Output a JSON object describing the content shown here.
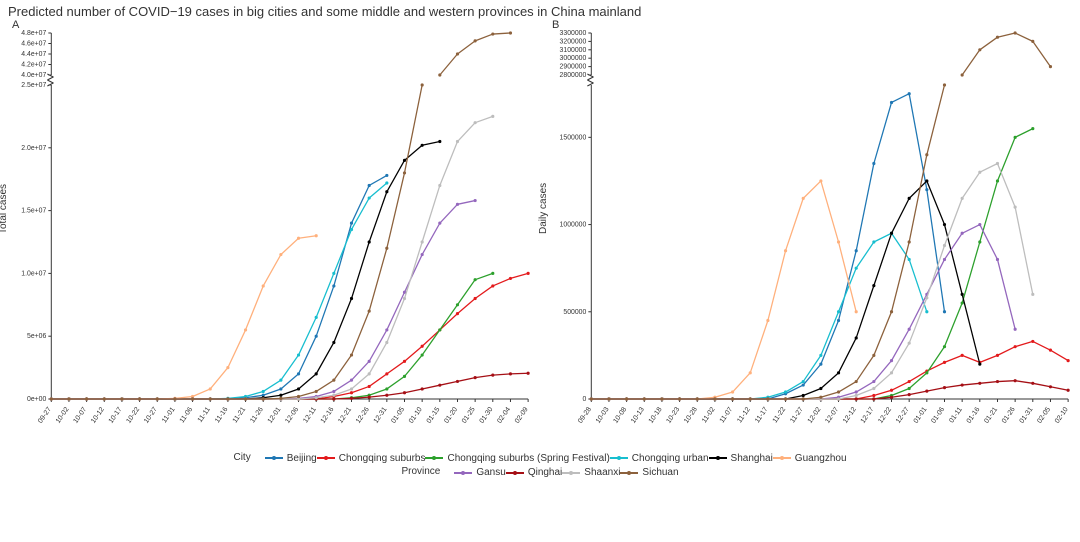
{
  "title": "Predicted number of COVID−19 cases in big cities and some middle and western provinces in China mainland",
  "panels": {
    "A": {
      "label": "A",
      "ylabel": "Total cases",
      "type": "line",
      "x_dates": [
        "09-27",
        "10-02",
        "10-07",
        "10-12",
        "10-17",
        "10-22",
        "10-27",
        "11-01",
        "11-06",
        "11-11",
        "11-16",
        "11-21",
        "11-26",
        "12-01",
        "12-06",
        "12-11",
        "12-16",
        "12-21",
        "12-26",
        "12-31",
        "01-05",
        "01-10",
        "01-15",
        "01-20",
        "01-25",
        "01-30",
        "02-04",
        "02-09"
      ],
      "ylim": [
        0,
        25000000.0
      ],
      "yticks": [
        0,
        5000000.0,
        10000000.0,
        15000000.0,
        20000000.0,
        25000000.0
      ],
      "ytick_labels": [
        "0e+00",
        "5e+06",
        "1.0e+07",
        "1.5e+07",
        "2.0e+07",
        "2.5e+07"
      ],
      "break_top": {
        "ylim": [
          40000000.0,
          48000000.0
        ],
        "yticks": [
          40000000.0,
          42000000.0,
          44000000.0,
          46000000.0,
          48000000.0
        ],
        "ytick_labels": [
          "4.0e+07",
          "4.2e+07",
          "4.4e+07",
          "4.6e+07",
          "4.8e+07"
        ]
      },
      "background_color": "#ffffff",
      "grid_color": "#e0e0e0",
      "tick_fontsize": 7,
      "label_fontsize": 10,
      "series": {
        "Beijing": {
          "color": "#1f77b4",
          "y": [
            0,
            0,
            0,
            0,
            0,
            0,
            0,
            0,
            0,
            0,
            0,
            100000.0,
            300000.0,
            800000.0,
            2000000.0,
            5000000.0,
            9000000.0,
            14000000.0,
            17000000.0,
            17800000.0,
            null,
            null,
            null,
            null,
            null,
            null,
            null,
            null
          ]
        },
        "Chongqing suburbs": {
          "color": "#e31a1c",
          "y": [
            0,
            0,
            0,
            0,
            0,
            0,
            0,
            0,
            0,
            0,
            0,
            0,
            0,
            0,
            0,
            0,
            200000.0,
            500000.0,
            1000000.0,
            2000000.0,
            3000000.0,
            4200000.0,
            5500000.0,
            6800000.0,
            8000000.0,
            9000000.0,
            9600000.0,
            10000000.0
          ]
        },
        "Chongqing suburbs (Spring Festival)": {
          "color": "#2ca02c",
          "y": [
            0,
            0,
            0,
            0,
            0,
            0,
            0,
            0,
            0,
            0,
            0,
            0,
            0,
            0,
            0,
            0,
            0,
            100000.0,
            300000.0,
            800000.0,
            1800000.0,
            3500000.0,
            5500000.0,
            7500000.0,
            9500000.0,
            10000000.0,
            null,
            null
          ]
        },
        "Chongqing urban": {
          "color": "#17becf",
          "y": [
            0,
            0,
            0,
            0,
            0,
            0,
            0,
            0,
            0,
            0,
            50000.0,
            200000.0,
            600000.0,
            1500000.0,
            3500000.0,
            6500000.0,
            10000000.0,
            13500000.0,
            16000000.0,
            17200000.0,
            null,
            null,
            null,
            null,
            null,
            null,
            null,
            null
          ]
        },
        "Shanghai": {
          "color": "#000000",
          "y": [
            0,
            0,
            0,
            0,
            0,
            0,
            0,
            0,
            0,
            0,
            0,
            0,
            100000.0,
            300000.0,
            800000.0,
            2000000.0,
            4500000.0,
            8000000.0,
            12500000.0,
            16500000.0,
            19000000.0,
            20200000.0,
            20500000.0,
            null,
            null,
            null,
            null,
            null
          ]
        },
        "Guangzhou": {
          "color": "#ffb07c",
          "y": [
            0,
            0,
            0,
            0,
            0,
            0,
            0,
            50000.0,
            200000.0,
            800000.0,
            2500000.0,
            5500000.0,
            9000000.0,
            11500000.0,
            12800000.0,
            13000000.0,
            null,
            null,
            null,
            null,
            null,
            null,
            null,
            null,
            null,
            null,
            null,
            null
          ]
        },
        "Gansu": {
          "color": "#9467bd",
          "y": [
            0,
            0,
            0,
            0,
            0,
            0,
            0,
            0,
            0,
            0,
            0,
            0,
            0,
            0,
            50000.0,
            200000.0,
            600000.0,
            1500000.0,
            3000000.0,
            5500000.0,
            8500000.0,
            11500000.0,
            14000000.0,
            15500000.0,
            15800000.0,
            null,
            null,
            null
          ]
        },
        "Qinghai": {
          "color": "#a50f15",
          "y": [
            0,
            0,
            0,
            0,
            0,
            0,
            0,
            0,
            0,
            0,
            0,
            0,
            0,
            0,
            0,
            0,
            0,
            50000.0,
            150000.0,
            300000.0,
            500000.0,
            800000.0,
            1100000.0,
            1400000.0,
            1700000.0,
            1900000.0,
            2000000.0,
            2050000.0
          ]
        },
        "Shaanxi": {
          "color": "#bdbdbd",
          "y": [
            0,
            0,
            0,
            0,
            0,
            0,
            0,
            0,
            0,
            0,
            0,
            0,
            0,
            0,
            0,
            100000.0,
            300000.0,
            800000.0,
            2000000.0,
            4500000.0,
            8000000.0,
            12500000.0,
            17000000.0,
            20500000.0,
            22000000.0,
            22500000.0,
            null,
            null
          ]
        },
        "Sichuan": {
          "color": "#8c613c",
          "y": [
            0,
            0,
            0,
            0,
            0,
            0,
            0,
            0,
            0,
            0,
            0,
            0,
            0,
            50000.0,
            200000.0,
            600000.0,
            1500000.0,
            3500000.0,
            7000000.0,
            12000000.0,
            18000000.0,
            25000000.0,
            null,
            null,
            null,
            null,
            null,
            null
          ]
        }
      },
      "break_series": {
        "Sichuan": {
          "color": "#8c613c",
          "y_top": [
            null,
            null,
            null,
            null,
            null,
            null,
            null,
            null,
            null,
            null,
            null,
            null,
            null,
            null,
            null,
            null,
            null,
            null,
            null,
            null,
            null,
            null,
            40000000.0,
            44000000.0,
            46500000.0,
            47800000.0,
            48000000.0,
            null
          ]
        }
      }
    },
    "B": {
      "label": "B",
      "ylabel": "Daily cases",
      "type": "line",
      "x_dates": [
        "09-28",
        "10-03",
        "10-08",
        "10-13",
        "10-18",
        "10-23",
        "10-28",
        "11-02",
        "11-07",
        "11-12",
        "11-17",
        "11-22",
        "11-27",
        "12-02",
        "12-07",
        "12-12",
        "12-17",
        "12-22",
        "12-27",
        "01-01",
        "01-06",
        "01-11",
        "01-16",
        "01-21",
        "01-26",
        "01-31",
        "02-05",
        "02-10"
      ],
      "ylim": [
        0,
        1800000.0
      ],
      "yticks": [
        0,
        500000.0,
        1000000.0,
        1500000.0
      ],
      "ytick_labels": [
        "0",
        "500000",
        "1000000",
        "1500000"
      ],
      "break_top": {
        "ylim": [
          2800000.0,
          3300000.0
        ],
        "yticks": [
          2800000.0,
          2900000.0,
          3000000.0,
          3100000.0,
          3200000.0,
          3300000.0
        ],
        "ytick_labels": [
          "2800000",
          "2900000",
          "3000000",
          "3100000",
          "3200000",
          "3300000"
        ]
      },
      "background_color": "#ffffff",
      "grid_color": "#e0e0e0",
      "tick_fontsize": 7,
      "label_fontsize": 10,
      "series": {
        "Beijing": {
          "color": "#1f77b4",
          "y": [
            0,
            0,
            0,
            0,
            0,
            0,
            0,
            0,
            0,
            0,
            0,
            30000.0,
            80000.0,
            200000.0,
            450000.0,
            850000.0,
            1350000.0,
            1700000.0,
            1750000.0,
            1200000.0,
            500000.0,
            null,
            null,
            null,
            null,
            null,
            null,
            null
          ]
        },
        "Chongqing suburbs": {
          "color": "#e31a1c",
          "y": [
            0,
            0,
            0,
            0,
            0,
            0,
            0,
            0,
            0,
            0,
            0,
            0,
            0,
            0,
            0,
            0,
            20000.0,
            50000.0,
            100000.0,
            160000.0,
            210000.0,
            250000.0,
            210000.0,
            250000.0,
            300000.0,
            330000.0,
            280000.0,
            220000.0
          ]
        },
        "Chongqing suburbs (Spring Festival)": {
          "color": "#2ca02c",
          "y": [
            0,
            0,
            0,
            0,
            0,
            0,
            0,
            0,
            0,
            0,
            0,
            0,
            0,
            0,
            0,
            0,
            0,
            20000.0,
            60000.0,
            150000.0,
            300000.0,
            550000.0,
            900000.0,
            1250000.0,
            1500000.0,
            1550000.0,
            null,
            null
          ]
        },
        "Chongqing urban": {
          "color": "#17becf",
          "y": [
            0,
            0,
            0,
            0,
            0,
            0,
            0,
            0,
            0,
            0,
            10000.0,
            40000.0,
            100000.0,
            250000.0,
            500000.0,
            750000.0,
            900000.0,
            950000.0,
            800000.0,
            500000.0,
            null,
            null,
            null,
            null,
            null,
            null,
            null,
            null
          ]
        },
        "Shanghai": {
          "color": "#000000",
          "y": [
            0,
            0,
            0,
            0,
            0,
            0,
            0,
            0,
            0,
            0,
            0,
            0,
            20000.0,
            60000.0,
            150000.0,
            350000.0,
            650000.0,
            950000.0,
            1150000.0,
            1250000.0,
            1000000.0,
            600000.0,
            200000.0,
            null,
            null,
            null,
            null,
            null
          ]
        },
        "Guangzhou": {
          "color": "#ffb07c",
          "y": [
            0,
            0,
            0,
            0,
            0,
            0,
            0,
            10000.0,
            40000.0,
            150000.0,
            450000.0,
            850000.0,
            1150000.0,
            1250000.0,
            900000.0,
            500000.0,
            null,
            null,
            null,
            null,
            null,
            null,
            null,
            null,
            null,
            null,
            null,
            null
          ]
        },
        "Gansu": {
          "color": "#9467bd",
          "y": [
            0,
            0,
            0,
            0,
            0,
            0,
            0,
            0,
            0,
            0,
            0,
            0,
            0,
            0,
            10000.0,
            40000.0,
            100000.0,
            220000.0,
            400000.0,
            600000.0,
            800000.0,
            950000.0,
            1000000.0,
            800000.0,
            400000.0,
            null,
            null,
            null
          ]
        },
        "Qinghai": {
          "color": "#a50f15",
          "y": [
            0,
            0,
            0,
            0,
            0,
            0,
            0,
            0,
            0,
            0,
            0,
            0,
            0,
            0,
            0,
            0,
            0,
            10000.0,
            25000.0,
            45000.0,
            65000.0,
            80000.0,
            90000.0,
            100000.0,
            105000.0,
            90000.0,
            70000.0,
            50000.0
          ]
        },
        "Shaanxi": {
          "color": "#bdbdbd",
          "y": [
            0,
            0,
            0,
            0,
            0,
            0,
            0,
            0,
            0,
            0,
            0,
            0,
            0,
            0,
            0,
            20000.0,
            60000.0,
            150000.0,
            320000.0,
            580000.0,
            880000.0,
            1150000.0,
            1300000.0,
            1350000.0,
            1100000.0,
            600000.0,
            null,
            null
          ]
        },
        "Sichuan": {
          "color": "#8c613c",
          "y": [
            0,
            0,
            0,
            0,
            0,
            0,
            0,
            0,
            0,
            0,
            0,
            0,
            0,
            10000.0,
            40000.0,
            100000.0,
            250000.0,
            500000.0,
            900000.0,
            1400000.0,
            1800000.0,
            null,
            null,
            null,
            null,
            null,
            null,
            null
          ]
        }
      },
      "break_series": {
        "Sichuan": {
          "color": "#8c613c",
          "y_top": [
            null,
            null,
            null,
            null,
            null,
            null,
            null,
            null,
            null,
            null,
            null,
            null,
            null,
            null,
            null,
            null,
            null,
            null,
            null,
            null,
            null,
            2800000.0,
            3100000.0,
            3250000.0,
            3300000.0,
            3200000.0,
            2900000.0,
            null
          ]
        }
      }
    }
  },
  "legend": {
    "city_title": "City",
    "province_title": "Province",
    "cities": [
      {
        "label": "Beijing",
        "color": "#1f77b4"
      },
      {
        "label": "Chongqing suburbs",
        "color": "#e31a1c"
      },
      {
        "label": "Chongqing suburbs (Spring Festival)",
        "color": "#2ca02c"
      },
      {
        "label": "Chongqing urban",
        "color": "#17becf"
      },
      {
        "label": "Shanghai",
        "color": "#000000"
      },
      {
        "label": "Guangzhou",
        "color": "#ffb07c"
      }
    ],
    "provinces": [
      {
        "label": "Gansu",
        "color": "#9467bd"
      },
      {
        "label": "Qinghai",
        "color": "#a50f15"
      },
      {
        "label": "Shaanxi",
        "color": "#bdbdbd"
      },
      {
        "label": "Sichuan",
        "color": "#8c613c"
      }
    ]
  },
  "style": {
    "line_width": 1.3,
    "marker_radius": 1.6,
    "axis_color": "#333333",
    "tick_len": 3
  }
}
